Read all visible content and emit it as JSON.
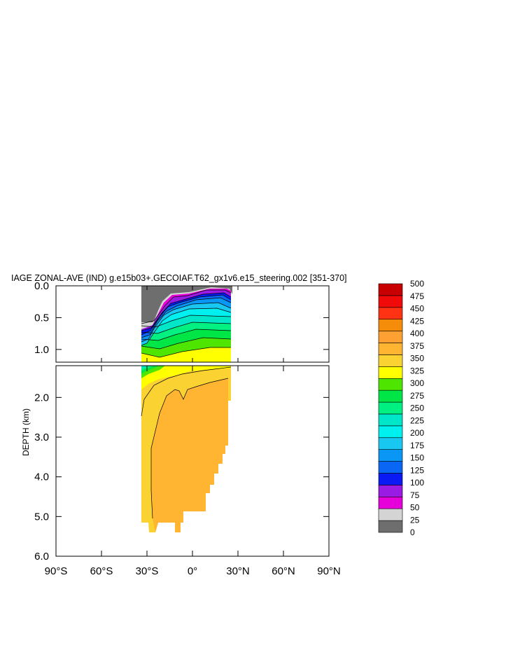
{
  "chart_data": {
    "type": "contour",
    "title": "IAGE ZONAL-AVE (IND) g.e15b03+.GECOIAF.T62_gx1v6.e15_steering.002 [351-370]",
    "ylabel": "DEPTH (km)",
    "xlim": [
      -90,
      90
    ],
    "x_ticks": [
      {
        "value": -90,
        "label": "90°S"
      },
      {
        "value": -60,
        "label": "60°S"
      },
      {
        "value": -30,
        "label": "30°S"
      },
      {
        "value": 0,
        "label": "0°"
      },
      {
        "value": 30,
        "label": "30°N"
      },
      {
        "value": 60,
        "label": "60°N"
      },
      {
        "value": 90,
        "label": "90°N"
      }
    ],
    "upper_panel": {
      "ylim": [
        0.0,
        1.2
      ],
      "y_ticks": [
        {
          "value": 0.0,
          "label": "0.0"
        },
        {
          "value": 0.5,
          "label": "0.5"
        },
        {
          "value": 1.0,
          "label": "1.0"
        }
      ]
    },
    "lower_panel": {
      "ylim": [
        1.2,
        6.0
      ],
      "y_ticks": [
        {
          "value": 2.0,
          "label": "2.0"
        },
        {
          "value": 3.0,
          "label": "3.0"
        },
        {
          "value": 4.0,
          "label": "4.0"
        },
        {
          "value": 5.0,
          "label": "5.0"
        },
        {
          "value": 6.0,
          "label": "6.0"
        }
      ]
    },
    "contour_levels": [
      "0",
      "25",
      "50",
      "75",
      "100",
      "125",
      "150",
      "175",
      "200",
      "225",
      "250",
      "275",
      "300",
      "325",
      "350",
      "375",
      "400",
      "425",
      "450",
      "475",
      "500"
    ],
    "colors": [
      "#6e6e6e",
      "#d4d4d4",
      "#e600d9",
      "#9a1be3",
      "#0a1af5",
      "#0a66f5",
      "#0a96f5",
      "#19c8f0",
      "#00f0f0",
      "#00e6c8",
      "#00f082",
      "#00e646",
      "#4ee600",
      "#ffff00",
      "#fad232",
      "#ffb432",
      "#ffa032",
      "#f58c0a",
      "#ff3214",
      "#f00a0a",
      "#c80000"
    ],
    "fill_regions": [
      {
        "level": "325-350",
        "lat_range": [
          -34,
          25
        ],
        "depth_range": [
          1.05,
          5.4
        ]
      },
      {
        "level": "350-375",
        "lat_range": [
          -25,
          24
        ],
        "depth_range": [
          1.5,
          5.4
        ]
      }
    ]
  }
}
